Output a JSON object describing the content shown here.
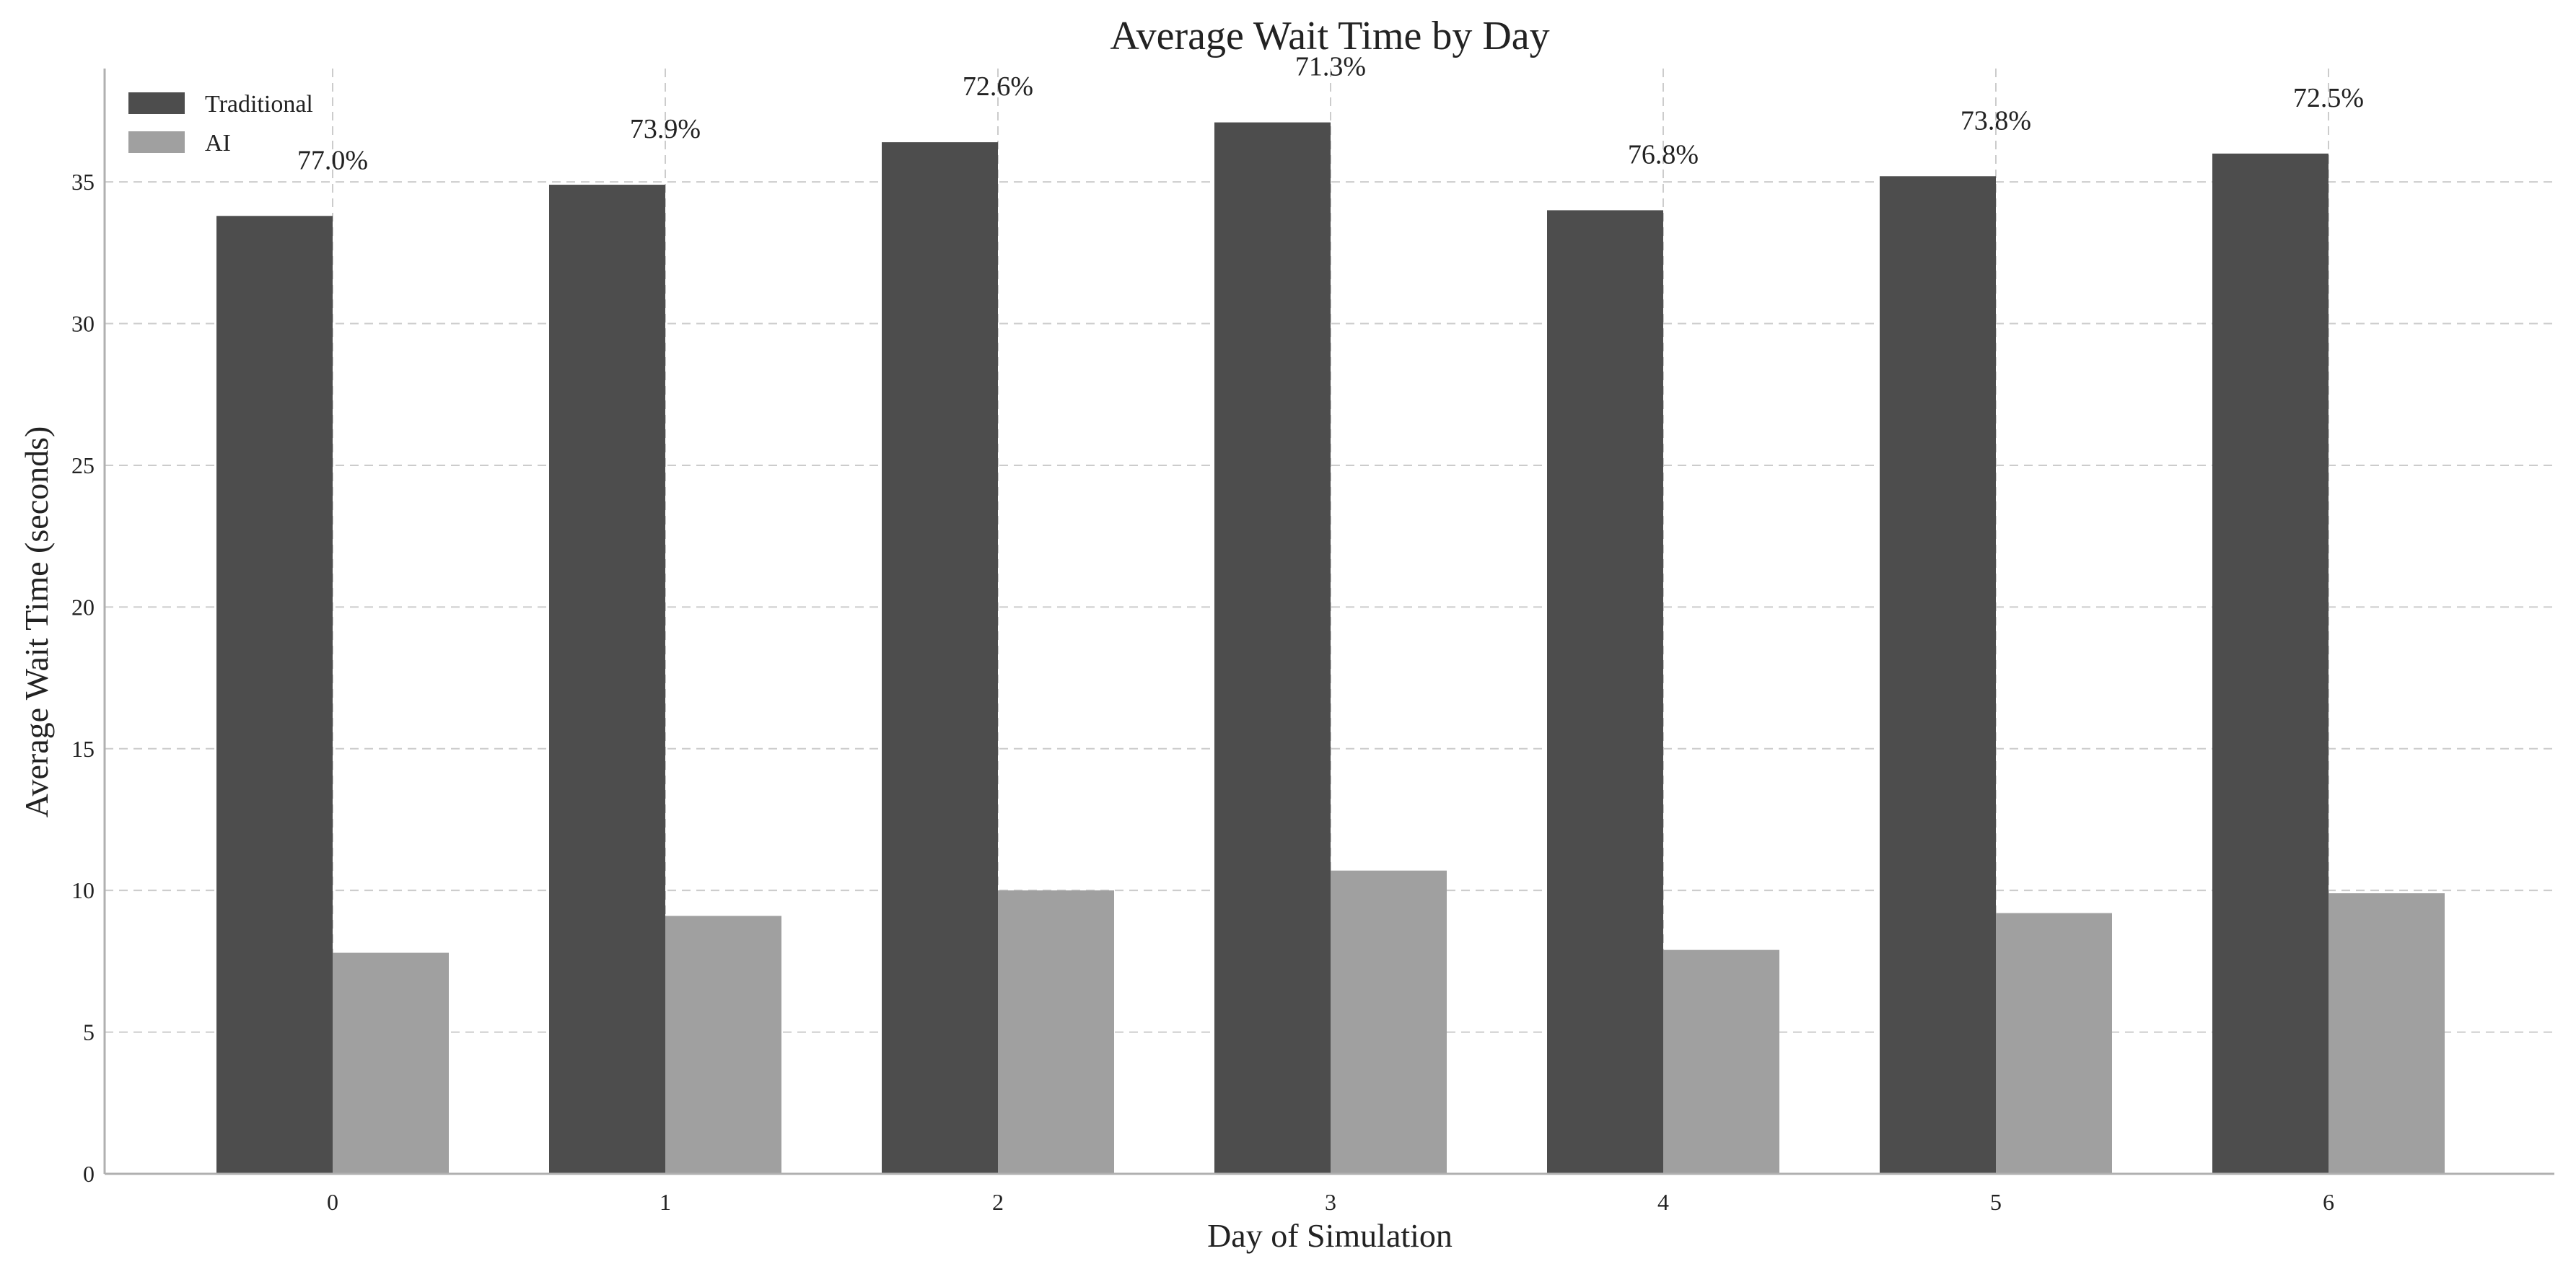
{
  "chart_data": {
    "type": "bar",
    "title": "Average Wait Time by Day",
    "xlabel": "Day of Simulation",
    "ylabel": "Average Wait Time (seconds)",
    "categories": [
      "0",
      "1",
      "2",
      "3",
      "4",
      "5",
      "6"
    ],
    "series": [
      {
        "name": "Traditional",
        "color": "#4d4d4d",
        "values": [
          33.8,
          34.9,
          36.4,
          37.1,
          34.0,
          35.2,
          36.0
        ]
      },
      {
        "name": "AI",
        "color": "#a0a0a0",
        "values": [
          7.8,
          9.1,
          10.0,
          10.7,
          7.9,
          9.2,
          9.9
        ]
      }
    ],
    "annotations": [
      "77.0%",
      "73.9%",
      "72.6%",
      "71.3%",
      "76.8%",
      "73.8%",
      "72.5%"
    ],
    "yticks": [
      0,
      5,
      10,
      15,
      20,
      25,
      30,
      35
    ],
    "ylim": [
      0,
      39
    ],
    "grid": true,
    "legend_position": "top-left"
  }
}
